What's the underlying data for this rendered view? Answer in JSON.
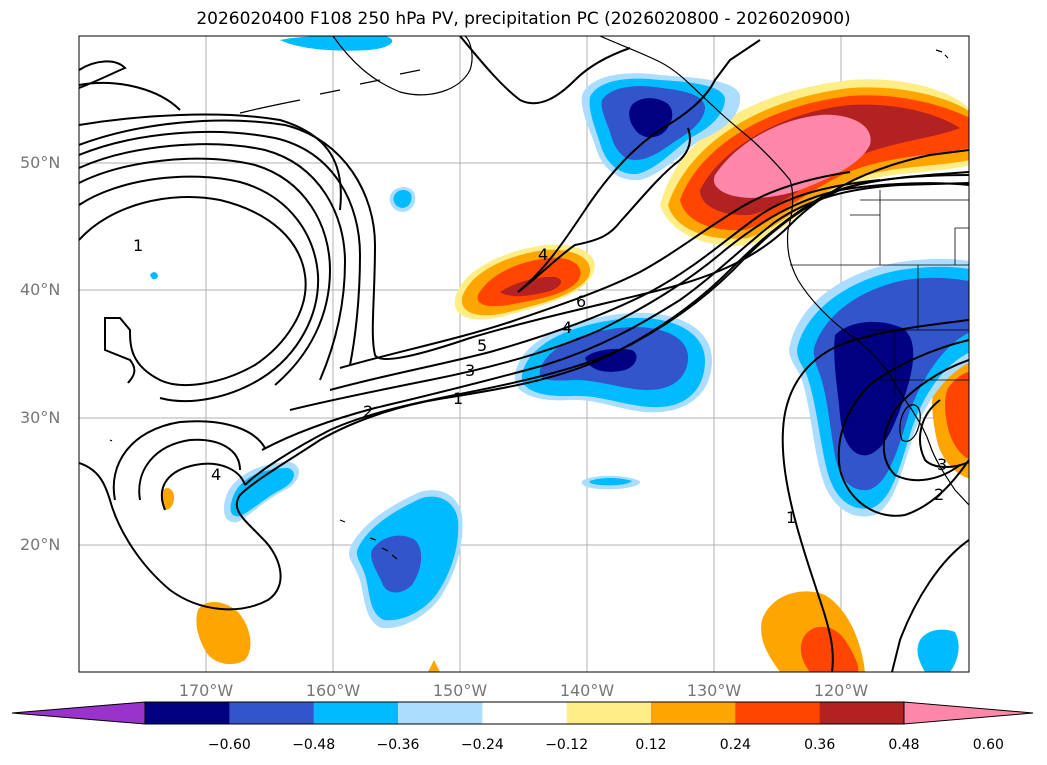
{
  "title": "2026020400 F108 250 hPa PV, precipitation PC (2026020800 - 2026020900)",
  "lat_labels": [
    "50°N",
    "40°N",
    "30°N",
    "20°N"
  ],
  "lon_labels": [
    "170°W",
    "160°W",
    "150°W",
    "140°W",
    "130°W",
    "120°W"
  ],
  "contour_labels": [
    "1",
    "2",
    "3",
    "4",
    "5",
    "6",
    "1",
    "4",
    "1",
    "2",
    "3",
    "4"
  ],
  "colorbar": {
    "ticks": [
      "−0.60",
      "−0.48",
      "−0.36",
      "−0.24",
      "−0.12",
      "0.12",
      "0.24",
      "0.36",
      "0.48",
      "0.60"
    ],
    "colors": [
      "#9933cc",
      "#000080",
      "#3355cc",
      "#00bbff",
      "#aaddff",
      "#ffffff",
      "#ffee88",
      "#ffa500",
      "#ff4500",
      "#b22222",
      "#ff88aa"
    ]
  },
  "palette": {
    "pos1": "#ffee88",
    "pos2": "#ffa500",
    "pos3": "#ff4500",
    "pos4": "#b22222",
    "pos5": "#ff88aa",
    "neg1": "#aaddff",
    "neg2": "#00bbff",
    "neg3": "#3355cc",
    "neg4": "#000080"
  }
}
